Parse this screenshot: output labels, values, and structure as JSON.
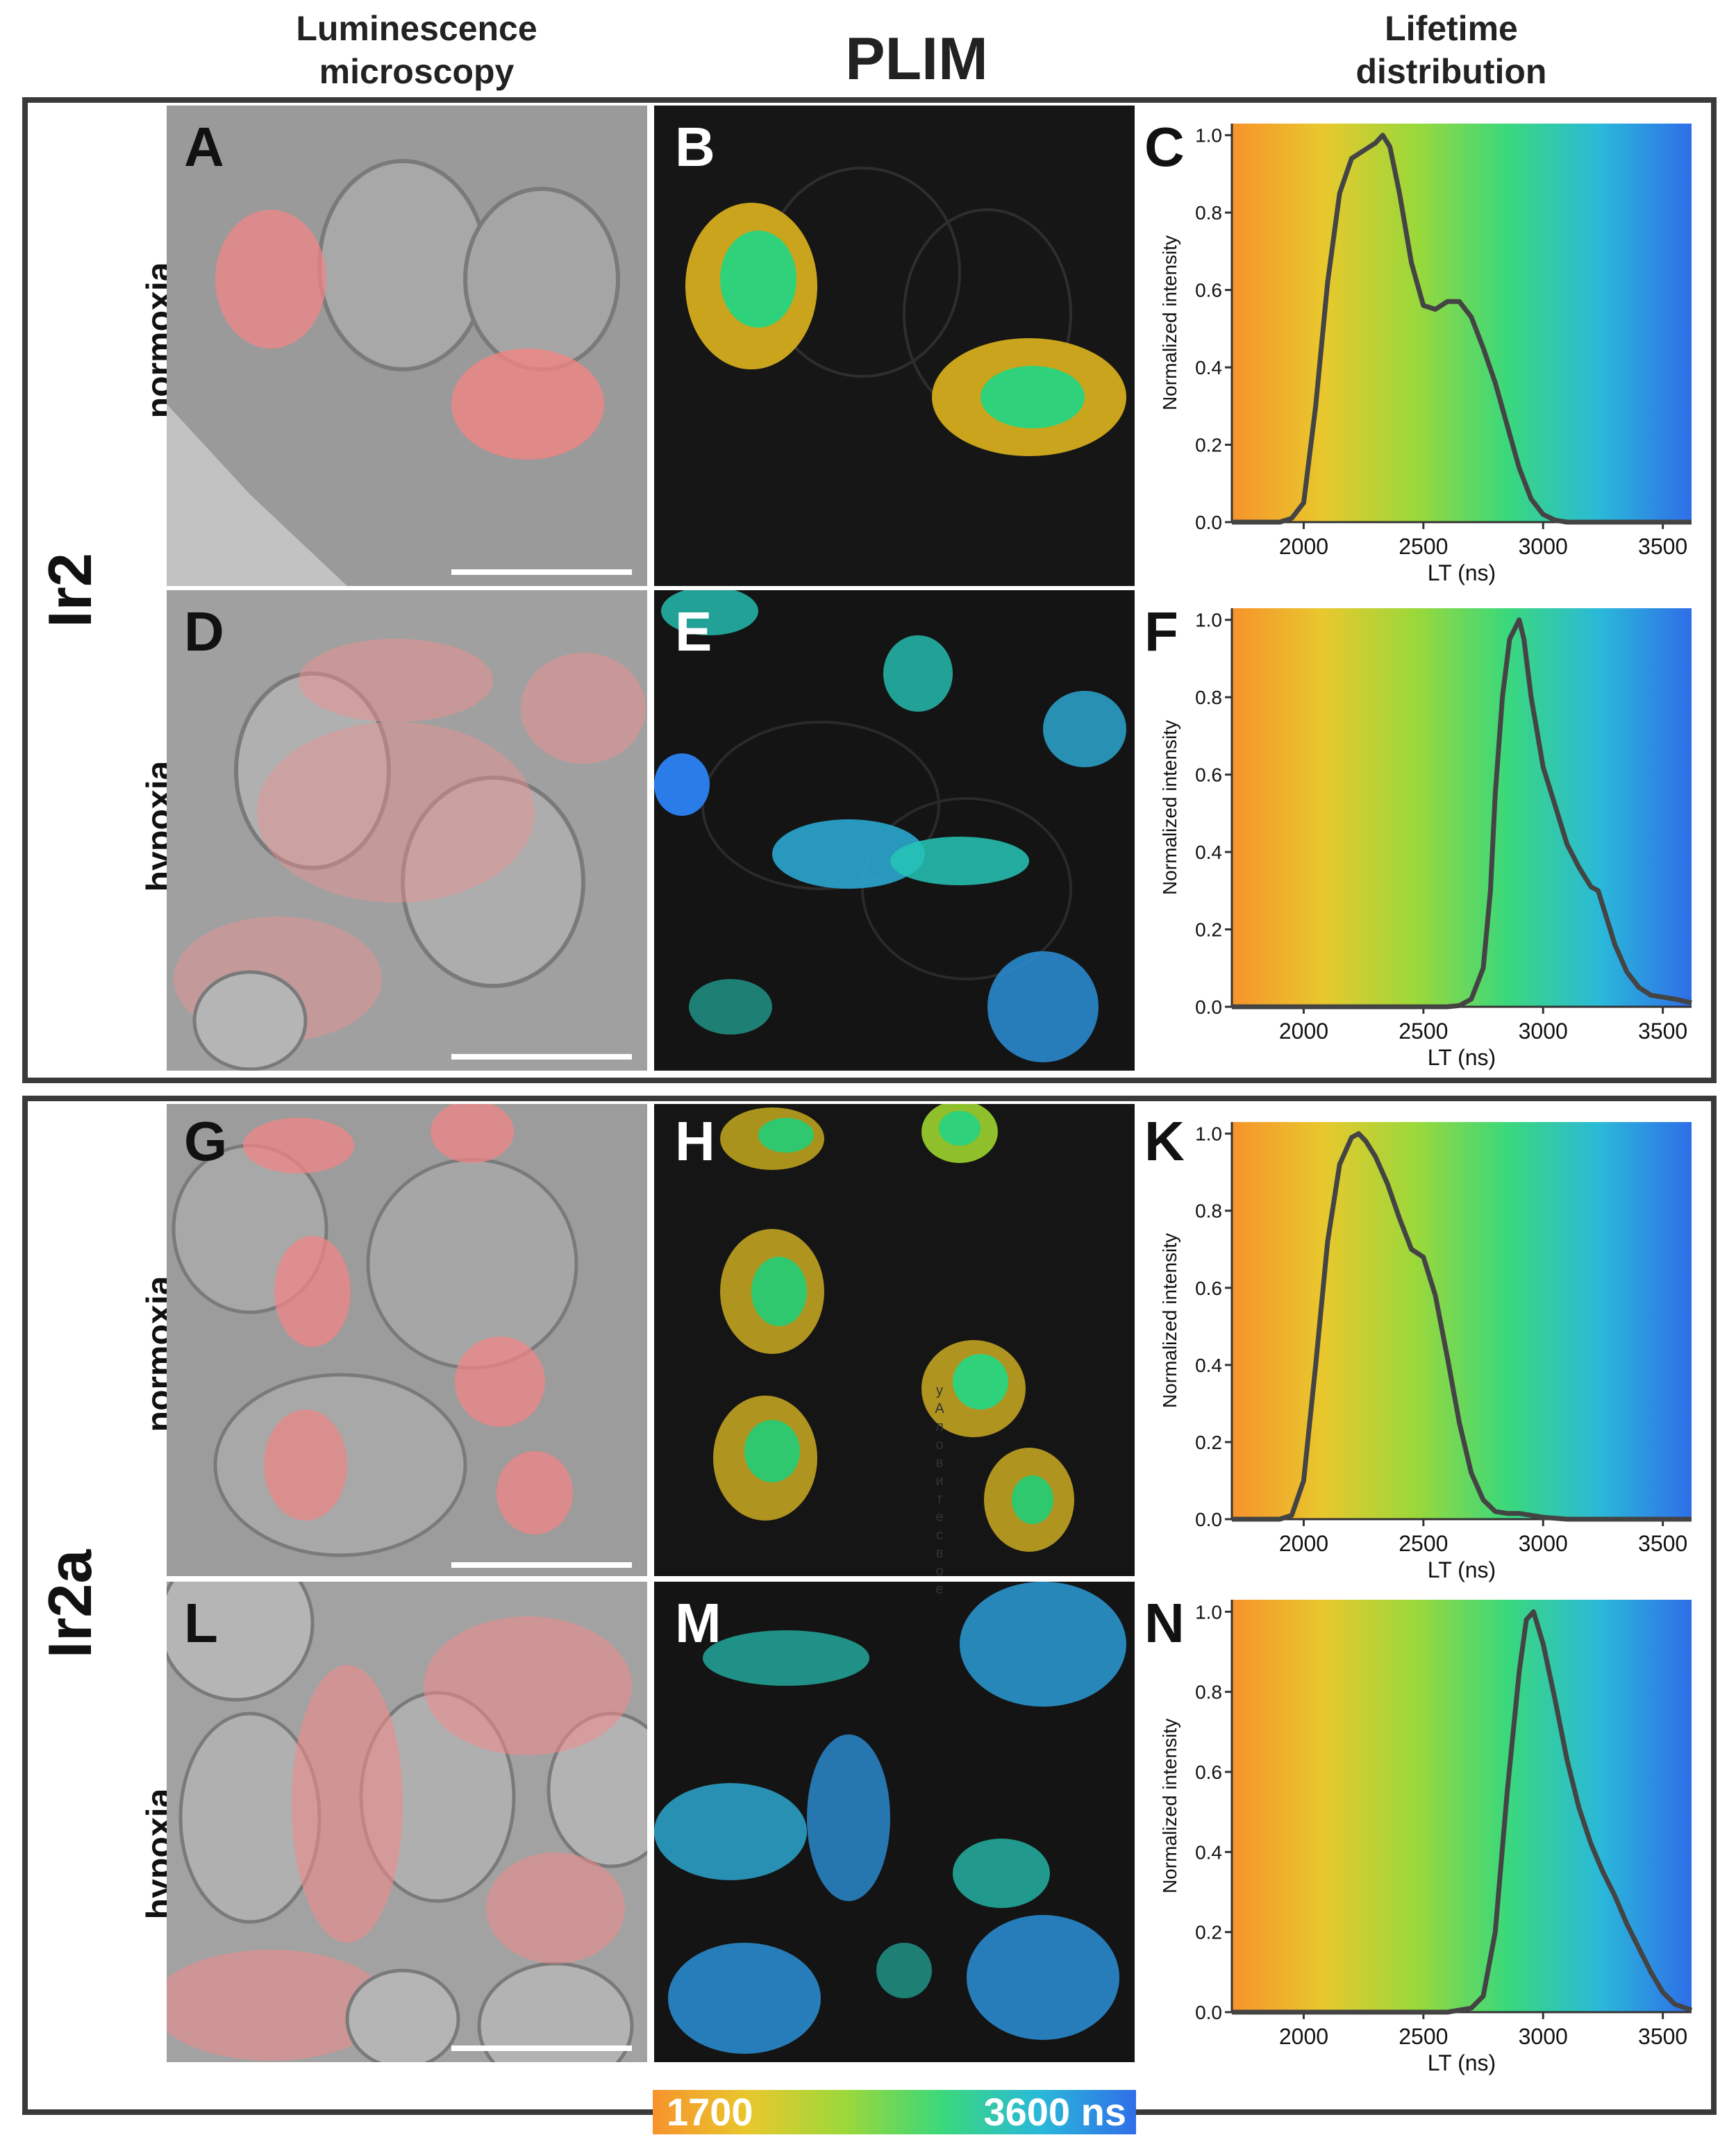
{
  "columns": {
    "microscopy": [
      "Luminescence",
      "microscopy"
    ],
    "plim": "PLIM",
    "lifetime": [
      "Lifetime",
      "distribution"
    ]
  },
  "groups": [
    {
      "compound": "Ir2",
      "rows": [
        {
          "condition": "normoxia",
          "panels": [
            "A",
            "B",
            "C"
          ]
        },
        {
          "condition": "hypoxia",
          "panels": [
            "D",
            "E",
            "F"
          ]
        }
      ]
    },
    {
      "compound": "Ir2a",
      "rows": [
        {
          "condition": "normoxia",
          "panels": [
            "G",
            "H",
            "K"
          ]
        },
        {
          "condition": "hypoxia",
          "panels": [
            "L",
            "M",
            "N"
          ]
        }
      ]
    }
  ],
  "vertical_text": [
    "у",
    "А",
    "л",
    "о",
    "в",
    "и",
    "т",
    "е",
    "с",
    "в",
    "о",
    "е"
  ],
  "colorbar": {
    "min_label": "1700",
    "max_label": "3600 ns",
    "colors": [
      "#f7932c",
      "#e8c82d",
      "#9bd83a",
      "#3ad87c",
      "#2ab9d9",
      "#2f6ee8"
    ]
  },
  "chart_data": [
    {
      "panel": "C",
      "type": "line",
      "xlabel": "LT (ns)",
      "ylabel": "Normalized intensity",
      "xlim": [
        1700,
        3620
      ],
      "ylim": [
        0,
        1.03
      ],
      "xticks": [
        "2000",
        "2500",
        "3000",
        "3500"
      ],
      "yticks": [
        "0.0",
        "0.2",
        "0.4",
        "0.6",
        "0.8",
        "1.0"
      ],
      "x": [
        1700,
        1900,
        1950,
        2000,
        2050,
        2100,
        2150,
        2200,
        2250,
        2300,
        2330,
        2360,
        2400,
        2450,
        2500,
        2550,
        2600,
        2650,
        2700,
        2750,
        2800,
        2850,
        2900,
        2950,
        3000,
        3050,
        3100,
        3300,
        3620
      ],
      "y": [
        0,
        0,
        0.01,
        0.05,
        0.3,
        0.62,
        0.85,
        0.94,
        0.96,
        0.98,
        1.0,
        0.97,
        0.85,
        0.67,
        0.56,
        0.55,
        0.57,
        0.57,
        0.53,
        0.45,
        0.36,
        0.25,
        0.14,
        0.06,
        0.02,
        0.005,
        0,
        0,
        0
      ]
    },
    {
      "panel": "F",
      "type": "line",
      "xlabel": "LT (ns)",
      "ylabel": "Normalized intensity",
      "xlim": [
        1700,
        3620
      ],
      "ylim": [
        0,
        1.03
      ],
      "xticks": [
        "2000",
        "2500",
        "3000",
        "3500"
      ],
      "yticks": [
        "0.0",
        "0.2",
        "0.4",
        "0.6",
        "0.8",
        "1.0"
      ],
      "x": [
        1700,
        2600,
        2650,
        2700,
        2750,
        2780,
        2800,
        2830,
        2860,
        2900,
        2920,
        2950,
        3000,
        3050,
        3100,
        3150,
        3200,
        3230,
        3260,
        3300,
        3350,
        3400,
        3450,
        3500,
        3550,
        3620
      ],
      "y": [
        0,
        0,
        0.003,
        0.02,
        0.1,
        0.3,
        0.55,
        0.8,
        0.95,
        1.0,
        0.95,
        0.8,
        0.62,
        0.52,
        0.42,
        0.36,
        0.31,
        0.3,
        0.24,
        0.16,
        0.09,
        0.05,
        0.03,
        0.025,
        0.02,
        0.01
      ]
    },
    {
      "panel": "K",
      "type": "line",
      "xlabel": "LT (ns)",
      "ylabel": "Normalized intensity",
      "xlim": [
        1700,
        3620
      ],
      "ylim": [
        0,
        1.03
      ],
      "xticks": [
        "2000",
        "2500",
        "3000",
        "3500"
      ],
      "yticks": [
        "0.0",
        "0.2",
        "0.4",
        "0.6",
        "0.8",
        "1.0"
      ],
      "x": [
        1700,
        1900,
        1950,
        2000,
        2050,
        2100,
        2150,
        2200,
        2230,
        2260,
        2300,
        2350,
        2400,
        2450,
        2500,
        2550,
        2600,
        2650,
        2700,
        2750,
        2800,
        2850,
        2900,
        2950,
        3000,
        3100,
        3620
      ],
      "y": [
        0,
        0,
        0.01,
        0.1,
        0.4,
        0.72,
        0.92,
        0.99,
        1.0,
        0.98,
        0.94,
        0.87,
        0.78,
        0.7,
        0.68,
        0.58,
        0.42,
        0.25,
        0.12,
        0.05,
        0.02,
        0.015,
        0.015,
        0.01,
        0.005,
        0,
        0
      ]
    },
    {
      "panel": "N",
      "type": "line",
      "xlabel": "LT (ns)",
      "ylabel": "Normalized intensity",
      "xlim": [
        1700,
        3620
      ],
      "ylim": [
        0,
        1.03
      ],
      "xticks": [
        "2000",
        "2500",
        "3000",
        "3500"
      ],
      "yticks": [
        "0.0",
        "0.2",
        "0.4",
        "0.6",
        "0.8",
        "1.0"
      ],
      "x": [
        1700,
        2600,
        2700,
        2750,
        2800,
        2850,
        2900,
        2930,
        2960,
        3000,
        3050,
        3100,
        3150,
        3200,
        3250,
        3300,
        3350,
        3400,
        3450,
        3500,
        3550,
        3620
      ],
      "y": [
        0,
        0,
        0.01,
        0.04,
        0.2,
        0.55,
        0.85,
        0.98,
        1.0,
        0.92,
        0.78,
        0.63,
        0.51,
        0.42,
        0.35,
        0.29,
        0.22,
        0.16,
        0.1,
        0.05,
        0.02,
        0.005
      ]
    }
  ]
}
